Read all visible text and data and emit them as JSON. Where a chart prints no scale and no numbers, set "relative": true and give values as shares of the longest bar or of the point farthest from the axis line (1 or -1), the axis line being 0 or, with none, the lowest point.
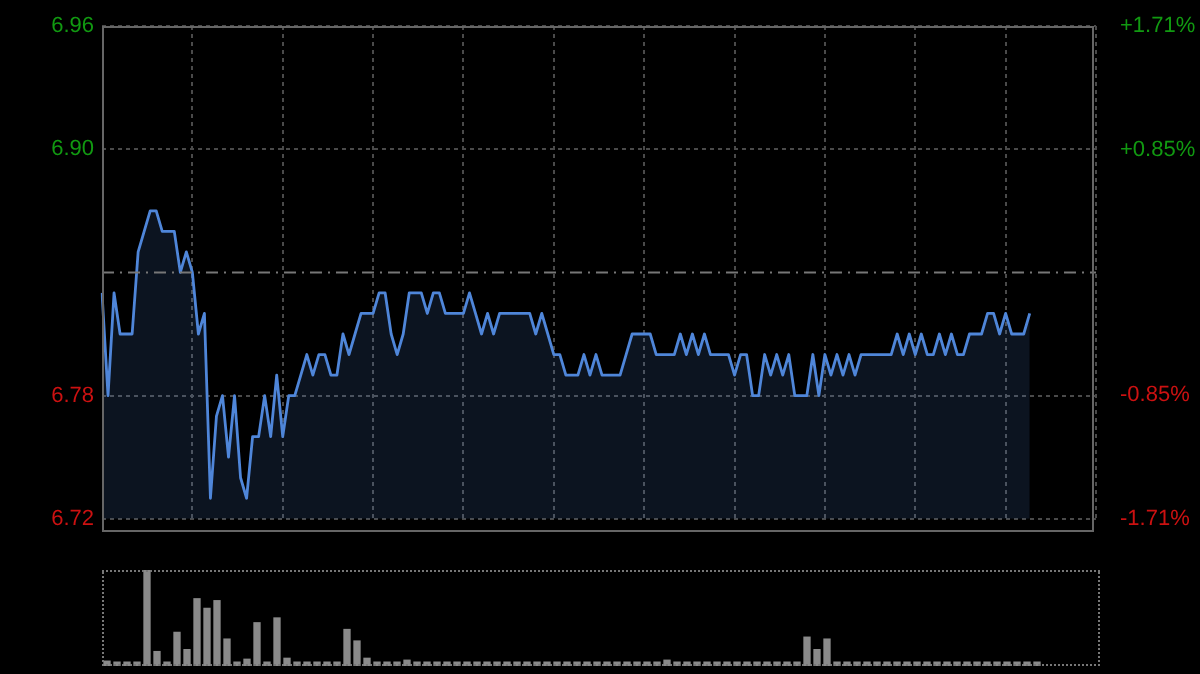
{
  "chart_data": [
    {
      "type": "area",
      "categories": [
        null,
        null,
        null,
        null,
        null,
        null,
        null,
        null,
        null,
        null,
        null,
        null,
        null,
        null,
        null,
        null,
        null,
        null,
        null,
        null,
        null,
        null,
        null,
        null,
        null,
        null,
        null,
        null,
        null,
        null,
        null,
        null,
        null,
        null,
        null,
        null,
        null,
        null,
        null,
        null,
        null,
        null,
        null,
        null,
        null,
        null,
        null,
        null,
        null,
        null,
        null,
        null,
        null,
        null,
        null,
        null,
        null,
        null,
        null,
        null,
        null,
        null,
        null,
        null,
        null,
        null,
        null,
        null,
        null,
        null,
        null,
        null,
        null,
        null,
        null,
        null,
        null,
        null,
        null,
        null,
        null,
        null,
        null,
        null,
        null,
        null,
        null,
        null,
        null,
        null,
        null,
        null,
        null,
        null,
        null,
        null,
        null,
        null,
        null,
        null,
        null,
        null,
        null,
        null,
        null,
        null,
        null,
        null,
        null,
        null,
        null,
        null,
        null,
        null,
        null,
        null,
        null,
        null,
        null,
        null,
        null,
        null,
        null,
        null,
        null,
        null,
        null,
        null,
        null,
        null,
        null,
        null,
        null,
        null,
        null,
        null,
        null,
        null,
        null,
        null,
        null,
        null,
        null,
        null,
        null,
        null,
        null,
        null,
        null,
        null,
        null,
        null,
        null,
        null,
        null,
        null,
        null,
        null,
        null,
        null,
        null,
        null,
        null,
        null,
        null,
        null
      ],
      "series": [
        {
          "color": "#4f86d9",
          "values": [
            6.83,
            6.78,
            6.83,
            6.81,
            6.81,
            6.81,
            6.85,
            6.86,
            6.87,
            6.87,
            6.86,
            6.86,
            6.86,
            6.84,
            6.85,
            6.84,
            6.81,
            6.82,
            6.73,
            6.77,
            6.78,
            6.75,
            6.78,
            6.74,
            6.73,
            6.76,
            6.76,
            6.78,
            6.76,
            6.79,
            6.76,
            6.78,
            6.78,
            6.79,
            6.8,
            6.79,
            6.8,
            6.8,
            6.79,
            6.79,
            6.81,
            6.8,
            6.81,
            6.82,
            6.82,
            6.82,
            6.83,
            6.83,
            6.81,
            6.8,
            6.81,
            6.83,
            6.83,
            6.83,
            6.82,
            6.83,
            6.83,
            6.82,
            6.82,
            6.82,
            6.82,
            6.83,
            6.82,
            6.81,
            6.82,
            6.81,
            6.82,
            6.82,
            6.82,
            6.82,
            6.82,
            6.82,
            6.81,
            6.82,
            6.81,
            6.8,
            6.8,
            6.79,
            6.79,
            6.79,
            6.8,
            6.79,
            6.8,
            6.79,
            6.79,
            6.79,
            6.79,
            6.8,
            6.81,
            6.81,
            6.81,
            6.81,
            6.8,
            6.8,
            6.8,
            6.8,
            6.81,
            6.8,
            6.81,
            6.8,
            6.81,
            6.8,
            6.8,
            6.8,
            6.8,
            6.79,
            6.8,
            6.8,
            6.78,
            6.78,
            6.8,
            6.79,
            6.8,
            6.79,
            6.8,
            6.78,
            6.78,
            6.78,
            6.8,
            6.78,
            6.8,
            6.79,
            6.8,
            6.79,
            6.8,
            6.79,
            6.8,
            6.8,
            6.8,
            6.8,
            6.8,
            6.8,
            6.81,
            6.8,
            6.81,
            6.8,
            6.81,
            6.8,
            6.8,
            6.81,
            6.8,
            6.81,
            6.8,
            6.8,
            6.81,
            6.81,
            6.81,
            6.82,
            6.82,
            6.81,
            6.82,
            6.81,
            6.81,
            6.81,
            6.82,
            null,
            null,
            null,
            null,
            null,
            null,
            null,
            null,
            null,
            null,
            null
          ]
        }
      ],
      "ylim": [
        6.72,
        6.96
      ],
      "yticks": [
        {
          "value": 6.72,
          "label": "6.72"
        },
        {
          "value": 6.78,
          "label": "6.78"
        },
        {
          "value": 6.9,
          "label": "6.90"
        },
        {
          "value": 6.96,
          "label": "6.96"
        }
      ],
      "y2lim": [
        -1.71,
        1.71
      ],
      "y2ticks": [
        {
          "value": -1.71,
          "label": "-1.71%"
        },
        {
          "value": -0.85,
          "label": "-0.85%"
        },
        {
          "value": 0.85,
          "label": "+0.85%"
        },
        {
          "value": 1.71,
          "label": "+1.71%"
        }
      ],
      "ref_lines": [
        {
          "axis": "y",
          "value": 6.84,
          "label": null,
          "line_style": "dashed"
        }
      ],
      "grid": true,
      "line_style": "solid",
      "marker": "none"
    },
    {
      "type": "bar",
      "relative": true,
      "categories": [
        null,
        null,
        null,
        null,
        null,
        null,
        null,
        null,
        null,
        null,
        null,
        null,
        null,
        null,
        null,
        null,
        null,
        null,
        null,
        null,
        null,
        null,
        null,
        null,
        null,
        null,
        null,
        null,
        null,
        null,
        null,
        null,
        null,
        null,
        null,
        null,
        null,
        null,
        null,
        null,
        null,
        null,
        null,
        null,
        null,
        null,
        null,
        null,
        null,
        null,
        null,
        null,
        null,
        null,
        null,
        null,
        null,
        null,
        null,
        null,
        null,
        null,
        null,
        null,
        null,
        null,
        null,
        null,
        null,
        null,
        null,
        null,
        null,
        null,
        null,
        null,
        null,
        null,
        null,
        null,
        null,
        null,
        null,
        null,
        null,
        null,
        null,
        null,
        null,
        null,
        null,
        null,
        null,
        null
      ],
      "color": "#8a8a8a",
      "values": [
        0.05,
        0.04,
        0.04,
        0.04,
        1,
        0.15,
        0.04,
        0.35,
        0.17,
        0.7,
        0.6,
        0.68,
        0.28,
        0.04,
        0.07,
        0.45,
        0.04,
        0.5,
        0.08,
        0.04,
        0.04,
        0.04,
        0.04,
        0.04,
        0.38,
        0.26,
        0.08,
        0.04,
        0.04,
        0.04,
        0.06,
        0.04,
        0.04,
        0.04,
        0.04,
        0.04,
        0.04,
        0.04,
        0.04,
        0.04,
        0.04,
        0.04,
        0.04,
        0.04,
        0.04,
        0.04,
        0.04,
        0.04,
        0.04,
        0.04,
        0.04,
        0.04,
        0.04,
        0.04,
        0.04,
        0.04,
        0.06,
        0.04,
        0.04,
        0.04,
        0.04,
        0.04,
        0.04,
        0.04,
        0.04,
        0.04,
        0.04,
        0.04,
        0.04,
        0.04,
        0.3,
        0.17,
        0.28,
        0.04,
        0.04,
        0.04,
        0.04,
        0.04,
        0.04,
        0.04,
        0.04,
        0.04,
        0.04,
        0.04,
        0.04,
        0.04,
        0.04,
        0.04,
        0.04,
        0.04,
        0.04,
        0.04,
        0.04,
        0.04
      ]
    }
  ]
}
